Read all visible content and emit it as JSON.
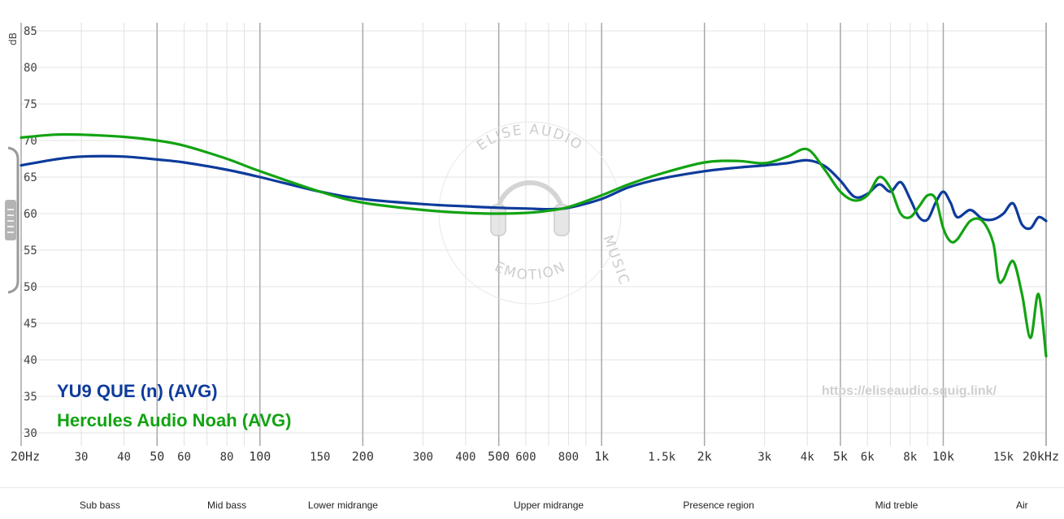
{
  "chart_data": {
    "type": "line",
    "ylabel": "dB",
    "ylim": [
      30,
      85
    ],
    "xlim": [
      20,
      20000
    ],
    "x_scale": "log",
    "grid": true,
    "y_ticks": [
      "85",
      "80",
      "75",
      "70",
      "65",
      "60",
      "55",
      "50",
      "45",
      "40",
      "35",
      "30"
    ],
    "x_ticks": [
      {
        "f": 20,
        "label": "20Hz",
        "major": true
      },
      {
        "f": 30,
        "label": "30"
      },
      {
        "f": 40,
        "label": "40"
      },
      {
        "f": 50,
        "label": "50",
        "major": true
      },
      {
        "f": 60,
        "label": "60"
      },
      {
        "f": 80,
        "label": "80"
      },
      {
        "f": 100,
        "label": "100",
        "major": true
      },
      {
        "f": 150,
        "label": "150"
      },
      {
        "f": 200,
        "label": "200",
        "major": true
      },
      {
        "f": 300,
        "label": "300"
      },
      {
        "f": 400,
        "label": "400"
      },
      {
        "f": 500,
        "label": "500",
        "major": true
      },
      {
        "f": 600,
        "label": "600"
      },
      {
        "f": 800,
        "label": "800"
      },
      {
        "f": 1000,
        "label": "1k",
        "major": true
      },
      {
        "f": 1500,
        "label": "1.5k"
      },
      {
        "f": 2000,
        "label": "2k",
        "major": true
      },
      {
        "f": 3000,
        "label": "3k"
      },
      {
        "f": 4000,
        "label": "4k"
      },
      {
        "f": 5000,
        "label": "5k",
        "major": true
      },
      {
        "f": 6000,
        "label": "6k"
      },
      {
        "f": 8000,
        "label": "8k"
      },
      {
        "f": 10000,
        "label": "10k",
        "major": true
      },
      {
        "f": 15000,
        "label": "15k"
      },
      {
        "f": 20000,
        "label": "20kHz",
        "major": true
      }
    ],
    "series": [
      {
        "name": "YU9 QUE (n) (AVG)",
        "color": "#0d3b9b",
        "points": [
          [
            20,
            66.6
          ],
          [
            25,
            67.4
          ],
          [
            30,
            67.8
          ],
          [
            40,
            67.8
          ],
          [
            50,
            67.4
          ],
          [
            60,
            67
          ],
          [
            80,
            66
          ],
          [
            100,
            65
          ],
          [
            150,
            63
          ],
          [
            200,
            62
          ],
          [
            300,
            61.3
          ],
          [
            400,
            61
          ],
          [
            500,
            60.8
          ],
          [
            600,
            60.7
          ],
          [
            700,
            60.6
          ],
          [
            800,
            60.8
          ],
          [
            1000,
            62
          ],
          [
            1200,
            63.6
          ],
          [
            1500,
            64.8
          ],
          [
            2000,
            65.8
          ],
          [
            2500,
            66.3
          ],
          [
            3000,
            66.6
          ],
          [
            3500,
            66.9
          ],
          [
            4000,
            67.3
          ],
          [
            4500,
            66.5
          ],
          [
            5000,
            64.5
          ],
          [
            5500,
            62.3
          ],
          [
            6000,
            62.7
          ],
          [
            6500,
            64
          ],
          [
            7000,
            63
          ],
          [
            7500,
            64.3
          ],
          [
            8000,
            62
          ],
          [
            8500,
            59.5
          ],
          [
            9000,
            59.2
          ],
          [
            9500,
            61.5
          ],
          [
            10000,
            63
          ],
          [
            10500,
            61.5
          ],
          [
            11000,
            59.5
          ],
          [
            12000,
            60.5
          ],
          [
            13000,
            59.3
          ],
          [
            14000,
            59.2
          ],
          [
            15000,
            60
          ],
          [
            16000,
            61.4
          ],
          [
            17000,
            58.5
          ],
          [
            18000,
            58
          ],
          [
            19000,
            59.5
          ],
          [
            20000,
            59
          ]
        ]
      },
      {
        "name": "Hercules Audio Noah (AVG)",
        "color": "#12a312",
        "points": [
          [
            20,
            70.4
          ],
          [
            25,
            70.8
          ],
          [
            30,
            70.8
          ],
          [
            40,
            70.5
          ],
          [
            50,
            70
          ],
          [
            60,
            69.3
          ],
          [
            80,
            67.5
          ],
          [
            100,
            65.8
          ],
          [
            150,
            63
          ],
          [
            200,
            61.5
          ],
          [
            300,
            60.5
          ],
          [
            400,
            60.1
          ],
          [
            500,
            60
          ],
          [
            600,
            60.1
          ],
          [
            700,
            60.4
          ],
          [
            800,
            60.9
          ],
          [
            1000,
            62.5
          ],
          [
            1200,
            64
          ],
          [
            1500,
            65.5
          ],
          [
            2000,
            67
          ],
          [
            2500,
            67.2
          ],
          [
            3000,
            66.9
          ],
          [
            3500,
            67.8
          ],
          [
            4000,
            68.8
          ],
          [
            4500,
            66
          ],
          [
            5000,
            63
          ],
          [
            5500,
            61.8
          ],
          [
            6000,
            62.5
          ],
          [
            6500,
            65
          ],
          [
            7000,
            63.5
          ],
          [
            7500,
            60
          ],
          [
            8000,
            59.5
          ],
          [
            8500,
            61
          ],
          [
            9000,
            62.5
          ],
          [
            9500,
            62
          ],
          [
            10000,
            58
          ],
          [
            10500,
            56.2
          ],
          [
            11000,
            56.5
          ],
          [
            12000,
            59
          ],
          [
            13000,
            59
          ],
          [
            14000,
            56
          ],
          [
            14500,
            51
          ],
          [
            15000,
            51
          ],
          [
            16000,
            53.5
          ],
          [
            17000,
            49
          ],
          [
            18000,
            43
          ],
          [
            19000,
            49
          ],
          [
            20000,
            40.5
          ]
        ]
      }
    ],
    "legend_placement": "bottom-left"
  },
  "watermark": {
    "ring_top": "ELISE AUDIO",
    "ring_right": "MUSIC",
    "ring_bottom": "EMOTION",
    "url": "https://eliseaudio.squig.link/"
  },
  "bands": [
    {
      "label": "Sub bass",
      "f": 34
    },
    {
      "label": "Mid bass",
      "f": 80
    },
    {
      "label": "Lower midrange",
      "f": 175
    },
    {
      "label": "Upper midrange",
      "f": 700
    },
    {
      "label": "Presence region",
      "f": 2200
    },
    {
      "label": "Mid treble",
      "f": 7300
    },
    {
      "label": "Air",
      "f": 17000
    }
  ]
}
